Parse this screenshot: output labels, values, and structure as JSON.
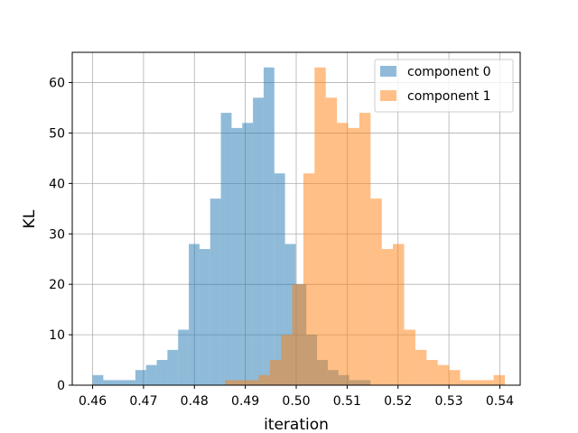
{
  "chart_data": {
    "type": "histogram",
    "title": "",
    "xlabel": "iteration",
    "ylabel": "KL",
    "xlim": [
      0.456,
      0.544
    ],
    "ylim": [
      0,
      66
    ],
    "xticks": [
      "0.46",
      "0.47",
      "0.48",
      "0.49",
      "0.50",
      "0.51",
      "0.52",
      "0.53",
      "0.54"
    ],
    "yticks": [
      "0",
      "10",
      "20",
      "30",
      "40",
      "50",
      "60"
    ],
    "grid": true,
    "legend_position": "top-right",
    "bar_alpha": 0.5,
    "series": [
      {
        "name": "component 0",
        "color": "#1f77b4",
        "bin_width": 0.0021,
        "bin_starts": [
          0.46,
          0.4621,
          0.4642,
          0.4663,
          0.4684,
          0.4705,
          0.4726,
          0.4747,
          0.4768,
          0.4789,
          0.481,
          0.4831,
          0.4852,
          0.4873,
          0.4894,
          0.4915,
          0.4936,
          0.4957,
          0.4978,
          0.4999,
          0.502,
          0.5041,
          0.5062,
          0.5083,
          0.5104,
          0.5125,
          0.5146
        ],
        "counts": [
          2,
          1,
          1,
          1,
          3,
          4,
          5,
          7,
          11,
          28,
          27,
          37,
          54,
          51,
          52,
          57,
          63,
          42,
          28,
          20,
          10,
          5,
          3,
          2,
          1,
          1,
          0
        ]
      },
      {
        "name": "component 1",
        "color": "#ff7f0e",
        "bin_width": 0.0022,
        "bin_starts": [
          0.486,
          0.4882,
          0.4904,
          0.4926,
          0.4948,
          0.497,
          0.4992,
          0.5014,
          0.5036,
          0.5058,
          0.508,
          0.5102,
          0.5124,
          0.5146,
          0.5168,
          0.519,
          0.5212,
          0.5234,
          0.5256,
          0.5278,
          0.53,
          0.5322,
          0.5344,
          0.5366,
          0.5388
        ],
        "counts": [
          1,
          1,
          1,
          2,
          5,
          10,
          20,
          42,
          63,
          57,
          52,
          51,
          54,
          37,
          27,
          28,
          11,
          7,
          5,
          4,
          3,
          1,
          1,
          1,
          2
        ]
      }
    ]
  }
}
